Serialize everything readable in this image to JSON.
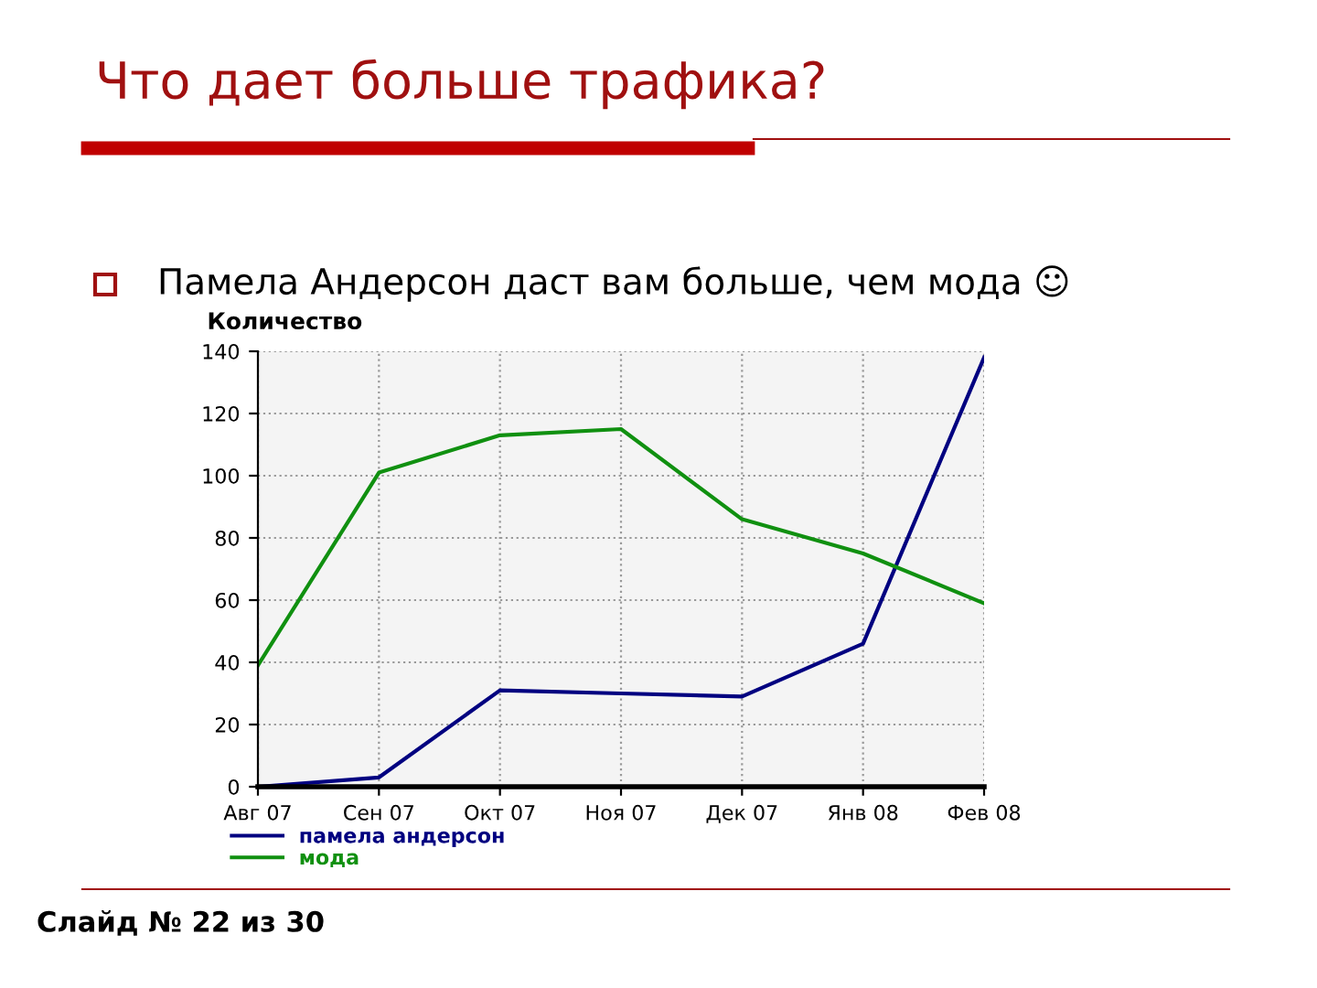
{
  "chart_data": {
    "type": "line",
    "title": "Что дает больше трафика?",
    "subtitle": "Памела Андерсон даст вам больше, чем мода ☺",
    "ylabel": "Количество",
    "categories": [
      "Авг 07",
      "Сен 07",
      "Окт 07",
      "Ноя 07",
      "Дек 07",
      "Янв 08",
      "Фев 08"
    ],
    "series": [
      {
        "name": "памела андерсон",
        "color": "#000080",
        "values": [
          0,
          3,
          31,
          30,
          29,
          46,
          138
        ]
      },
      {
        "name": "мода",
        "color": "#109010",
        "values": [
          39,
          101,
          113,
          115,
          86,
          75,
          59
        ]
      }
    ],
    "ylim": [
      0,
      140
    ],
    "yticks": [
      0,
      20,
      40,
      60,
      80,
      100,
      120,
      140
    ],
    "grid": true,
    "legend": "bottom left",
    "marker": "none",
    "line_style": "solid",
    "annotations": [
      "Слайд № 22 из 30"
    ]
  }
}
